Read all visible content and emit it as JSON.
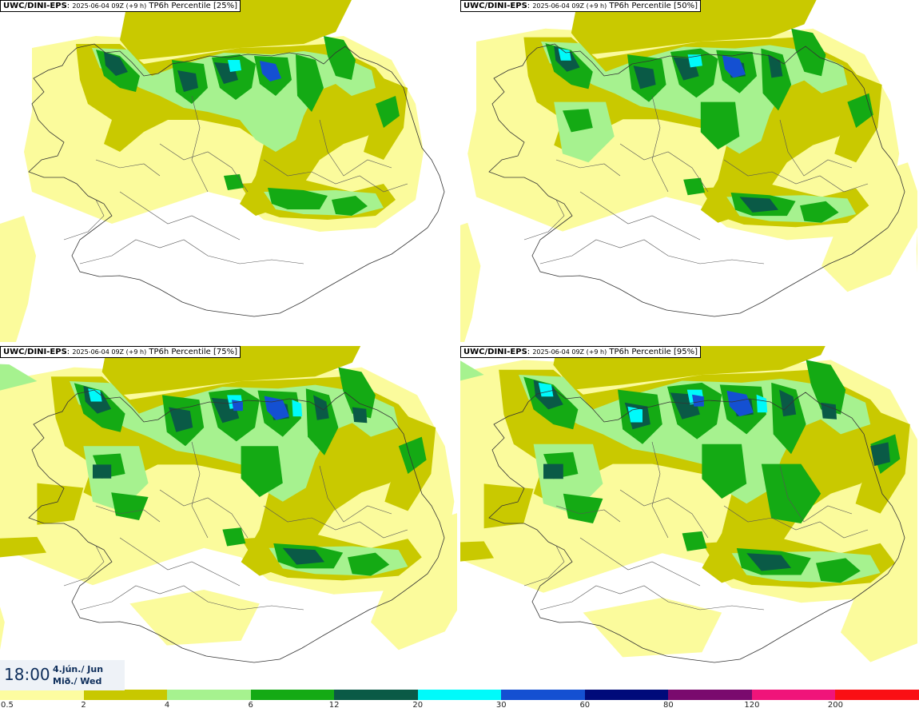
{
  "panels": [
    {
      "model": "UWC/DINI-EPS",
      "run": "2025-06-04 09Z (+9 h)",
      "variable": "TP6h Percentile [25%]",
      "level": 1
    },
    {
      "model": "UWC/DINI-EPS",
      "run": "2025-06-04 09Z (+9 h)",
      "variable": "TP6h Percentile [50%]",
      "level": 2
    },
    {
      "model": "UWC/DINI-EPS",
      "run": "2025-06-04 09Z (+9 h)",
      "variable": "TP6h Percentile [75%]",
      "level": 3
    },
    {
      "model": "UWC/DINI-EPS",
      "run": "2025-06-04 09Z (+9 h)",
      "variable": "TP6h Percentile [95%]",
      "level": 4
    }
  ],
  "valid_time": {
    "clock": "18:00",
    "date_line1": "4.jún./ Jun",
    "date_line2": "Mið./ Wed"
  },
  "legend": {
    "ticks": [
      "0.5",
      "2",
      "4",
      "6",
      "12",
      "20",
      "30",
      "60",
      "80",
      "120",
      "200"
    ],
    "colors": [
      "#fdfca0",
      "#c8c800",
      "#a6f28f",
      "#14aa14",
      "#0a5a46",
      "#00fafa",
      "#1450d2",
      "#000a7a",
      "#7a0a6e",
      "#f0147a",
      "#fa0f14"
    ]
  },
  "fill_colors": {
    "light": "#fbfb9c",
    "olive": "#c9c900",
    "lightgreen": "#a6f28f",
    "green": "#14aa14",
    "darkgreen": "#0a5a46",
    "cyan": "#00fafa",
    "blue": "#1450d2"
  }
}
